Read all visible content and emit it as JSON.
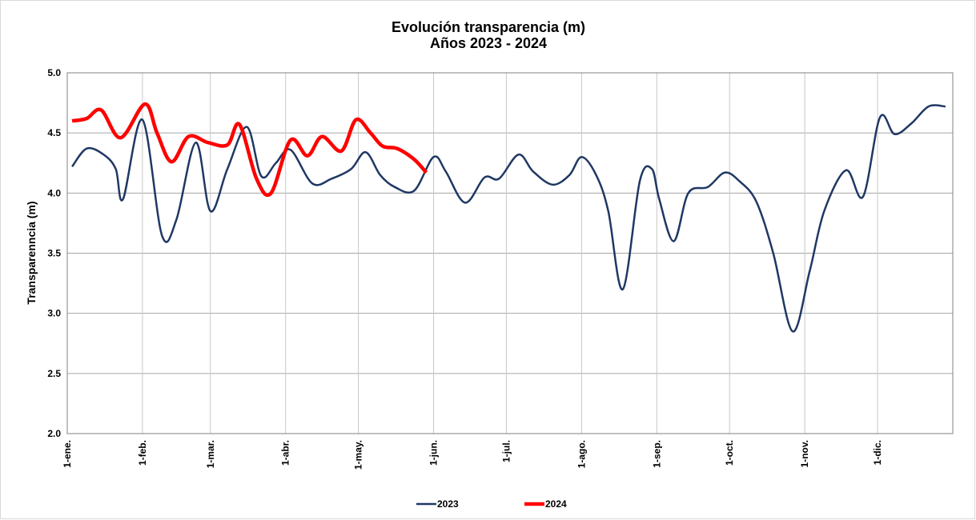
{
  "chart_data": {
    "type": "line",
    "title": "Evolución transparencia (m)",
    "subtitle": "Años 2023 - 2024",
    "y_label": "Transparenncia (m)",
    "xlim": [
      1,
      366
    ],
    "xticks": [
      {
        "value": 1,
        "label": "1-ene."
      },
      {
        "value": 32,
        "label": "1-feb."
      },
      {
        "value": 60,
        "label": "1-mar."
      },
      {
        "value": 91,
        "label": "1-abr."
      },
      {
        "value": 121,
        "label": "1-may."
      },
      {
        "value": 152,
        "label": "1-jun."
      },
      {
        "value": 182,
        "label": "1-jul."
      },
      {
        "value": 213,
        "label": "1-ago."
      },
      {
        "value": 244,
        "label": "1-sep."
      },
      {
        "value": 274,
        "label": "1-oct."
      },
      {
        "value": 305,
        "label": "1-nov."
      },
      {
        "value": 335,
        "label": "1-dic."
      }
    ],
    "ylim": [
      2.0,
      5.0
    ],
    "yticks": [
      {
        "value": 2.0,
        "label": "2.0"
      },
      {
        "value": 2.5,
        "label": "2.5"
      },
      {
        "value": 3.0,
        "label": "3.0"
      },
      {
        "value": 3.5,
        "label": "3.5"
      },
      {
        "value": 4.0,
        "label": "4.0"
      },
      {
        "value": 4.5,
        "label": "4.5"
      },
      {
        "value": 5.0,
        "label": "5.0"
      }
    ],
    "grid": true,
    "legend": "bottom",
    "series": [
      {
        "name": "2023",
        "color": "#1f3864",
        "width": 2.5,
        "x": [
          3,
          9,
          16,
          21,
          24,
          32,
          40,
          46,
          54,
          60,
          67,
          75,
          81,
          87,
          93,
          102,
          110,
          118,
          124,
          130,
          136,
          144,
          152,
          157,
          165,
          173,
          179,
          187,
          193,
          201,
          208,
          213,
          219,
          224,
          230,
          237,
          242,
          245,
          251,
          257,
          265,
          272,
          278,
          285,
          292,
          300,
          307,
          313,
          322,
          329,
          336,
          342,
          349,
          356,
          363
        ],
        "values": [
          4.22,
          4.37,
          4.32,
          4.2,
          3.95,
          4.61,
          3.65,
          3.78,
          4.42,
          3.85,
          4.2,
          4.55,
          4.14,
          4.25,
          4.36,
          4.08,
          4.12,
          4.2,
          4.34,
          4.15,
          4.05,
          4.02,
          4.3,
          4.18,
          3.92,
          4.13,
          4.12,
          4.32,
          4.18,
          4.07,
          4.15,
          4.3,
          4.15,
          3.85,
          3.2,
          4.1,
          4.2,
          3.95,
          3.6,
          4.0,
          4.05,
          4.17,
          4.1,
          3.93,
          3.5,
          2.85,
          3.35,
          3.85,
          4.19,
          3.97,
          4.63,
          4.49,
          4.58,
          4.72,
          4.72
        ]
      },
      {
        "name": "2024",
        "color": "#ff0000",
        "width": 4.5,
        "x": [
          3,
          9,
          15,
          23,
          33,
          38,
          44,
          51,
          59,
          67,
          72,
          79,
          85,
          93,
          100,
          106,
          114,
          120,
          126,
          131,
          137,
          144,
          149
        ],
        "values": [
          4.6,
          4.62,
          4.69,
          4.46,
          4.74,
          4.5,
          4.26,
          4.47,
          4.42,
          4.4,
          4.57,
          4.12,
          4.0,
          4.44,
          4.31,
          4.47,
          4.35,
          4.61,
          4.5,
          4.39,
          4.37,
          4.28,
          4.17
        ]
      }
    ]
  }
}
